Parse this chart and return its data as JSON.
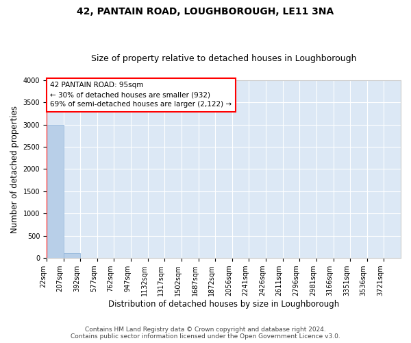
{
  "title": "42, PANTAIN ROAD, LOUGHBOROUGH, LE11 3NA",
  "subtitle": "Size of property relative to detached houses in Loughborough",
  "xlabel": "Distribution of detached houses by size in Loughborough",
  "ylabel": "Number of detached properties",
  "footer_line1": "Contains HM Land Registry data © Crown copyright and database right 2024.",
  "footer_line2": "Contains public sector information licensed under the Open Government Licence v3.0.",
  "bar_values": [
    3000,
    110,
    0,
    0,
    0,
    0,
    0,
    0,
    0,
    0,
    0,
    0,
    0,
    0,
    0,
    0,
    0,
    0,
    0,
    0
  ],
  "bar_color": "#b8cfe8",
  "bar_edge_color": "#8ab0d8",
  "x_labels": [
    "22sqm",
    "207sqm",
    "392sqm",
    "577sqm",
    "762sqm",
    "947sqm",
    "1132sqm",
    "1317sqm",
    "1502sqm",
    "1687sqm",
    "1872sqm",
    "2056sqm",
    "2241sqm",
    "2426sqm",
    "2611sqm",
    "2796sqm",
    "2981sqm",
    "3166sqm",
    "3351sqm",
    "3536sqm",
    "3721sqm"
  ],
  "ylim": [
    0,
    4000
  ],
  "yticks": [
    0,
    500,
    1000,
    1500,
    2000,
    2500,
    3000,
    3500,
    4000
  ],
  "annotation_line1": "42 PANTAIN ROAD: 95sqm",
  "annotation_line2": "← 30% of detached houses are smaller (932)",
  "annotation_line3": "69% of semi-detached houses are larger (2,122) →",
  "vline_color": "red",
  "plot_background": "#dce8f5",
  "grid_color": "#ffffff",
  "fig_background": "#ffffff",
  "title_fontsize": 10,
  "subtitle_fontsize": 9,
  "label_fontsize": 8.5,
  "tick_fontsize": 7,
  "footer_fontsize": 6.5
}
